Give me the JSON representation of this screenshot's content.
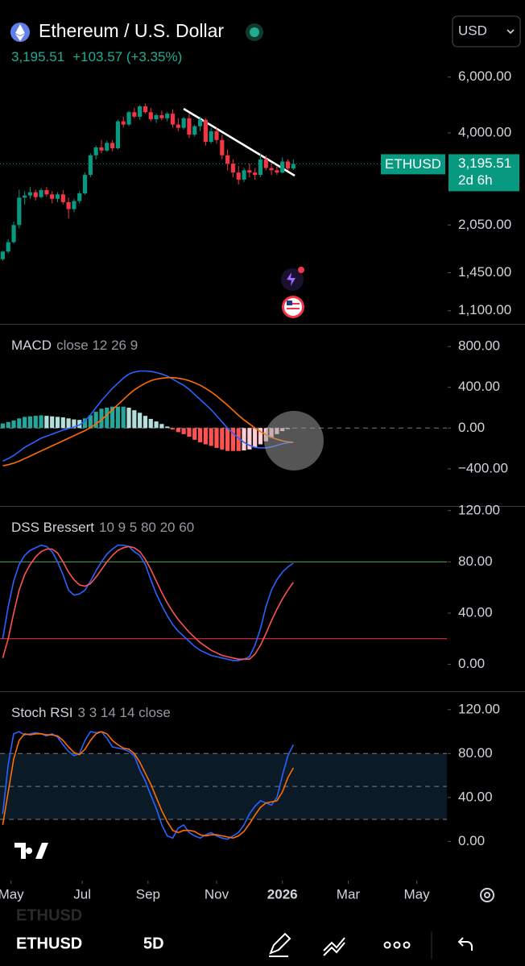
{
  "header": {
    "title": "Ethereum / U.S. Dollar",
    "price": "3,195.51",
    "change": "+103.57 (+3.35%)",
    "currency": "USD"
  },
  "footer": {
    "symbol": "ETHUSD",
    "interval": "5D"
  },
  "chart_data": [
    {
      "type": "candlestick",
      "log_scale": true,
      "up_color": "#089981",
      "down_color": "#f23645",
      "open": [
        1600,
        1690,
        1810,
        2050,
        2500,
        2540,
        2600,
        2510,
        2640,
        2560,
        2480,
        2560,
        2420,
        2300,
        2440,
        2580,
        2950,
        3400,
        3600,
        3520,
        3720,
        3580,
        4350,
        4250,
        4650,
        4500,
        4850,
        4650,
        4420,
        4550,
        4450,
        4600,
        4250,
        4150,
        4450,
        3950,
        4200,
        4400,
        3750,
        4050,
        3800,
        3400,
        3200,
        3000,
        2850,
        3050,
        3000,
        2950,
        3300,
        3100,
        3050,
        3000,
        3250,
        3090
      ],
      "high": [
        1700,
        1850,
        2100,
        2650,
        2620,
        2700,
        2650,
        2680,
        2700,
        2620,
        2600,
        2640,
        2500,
        2480,
        2620,
        3000,
        3450,
        3650,
        3800,
        3780,
        3800,
        4400,
        4500,
        4700,
        4800,
        4900,
        4950,
        4800,
        4600,
        4700,
        4650,
        4750,
        4450,
        4500,
        4600,
        4250,
        4500,
        4450,
        4150,
        4150,
        3950,
        3550,
        3300,
        3150,
        3100,
        3200,
        3100,
        3450,
        3400,
        3200,
        3150,
        3350,
        3300,
        3300
      ],
      "low": [
        1580,
        1670,
        1790,
        2000,
        2380,
        2480,
        2450,
        2490,
        2520,
        2400,
        2420,
        2380,
        2150,
        2250,
        2400,
        2550,
        2900,
        3300,
        3450,
        3480,
        3500,
        3550,
        4150,
        4200,
        4450,
        4400,
        4600,
        4350,
        4300,
        4380,
        4350,
        4150,
        4050,
        4100,
        3850,
        3900,
        4050,
        3650,
        3700,
        3700,
        3300,
        3050,
        2900,
        2750,
        2800,
        2900,
        2850,
        2900,
        3050,
        2950,
        2950,
        2980,
        3050,
        3060
      ],
      "close": [
        1690,
        1810,
        2050,
        2500,
        2540,
        2600,
        2510,
        2640,
        2560,
        2480,
        2560,
        2420,
        2300,
        2440,
        2580,
        2950,
        3400,
        3600,
        3520,
        3720,
        3580,
        4350,
        4250,
        4650,
        4500,
        4850,
        4650,
        4420,
        4550,
        4450,
        4600,
        4250,
        4150,
        4450,
        3950,
        4200,
        4400,
        3750,
        4050,
        3800,
        3400,
        3200,
        3000,
        2850,
        3050,
        3000,
        2950,
        3300,
        3100,
        3050,
        3000,
        3250,
        3090,
        3195.51
      ],
      "ylim": [
        1000,
        10500
      ],
      "yticks": [
        {
          "value": 6000,
          "label": "6,000.00"
        },
        {
          "value": 4000,
          "label": "4,000.00"
        },
        {
          "value": 2050,
          "label": "2,050.00"
        },
        {
          "value": 1450,
          "label": "1,450.00"
        },
        {
          "value": 1100,
          "label": "1,100.00"
        }
      ],
      "symbol": "ETHUSD",
      "last_price": {
        "value": 3195.51,
        "label": "3,195.51"
      },
      "countdown": "2d 6h"
    },
    {
      "type": "macd",
      "title": "MACD",
      "subtitle": "close 12 26 9",
      "histogram_colors": [
        "#26a69a",
        "#b2dfdb",
        "#ff5252",
        "#ffcdd2"
      ],
      "histogram": [
        45,
        60,
        75,
        95,
        110,
        115,
        120,
        125,
        120,
        115,
        110,
        105,
        95,
        85,
        80,
        95,
        125,
        160,
        190,
        200,
        210,
        210,
        210,
        200,
        175,
        150,
        120,
        90,
        65,
        40,
        15,
        -15,
        -40,
        -60,
        -85,
        -115,
        -140,
        -160,
        -175,
        -195,
        -210,
        -225,
        -225,
        -225,
        -220,
        -210,
        -190,
        -160,
        -130,
        -95,
        -60,
        -30,
        -10,
        0
      ],
      "series": [
        {
          "color": "#2962ff",
          "values": [
            -325,
            -300,
            -270,
            -230,
            -190,
            -160,
            -130,
            -100,
            -80,
            -60,
            -40,
            -20,
            -5,
            10,
            30,
            70,
            130,
            200,
            270,
            330,
            390,
            440,
            490,
            530,
            550,
            560,
            560,
            555,
            545,
            530,
            510,
            480,
            450,
            420,
            380,
            330,
            280,
            230,
            180,
            120,
            60,
            0,
            -50,
            -100,
            -140,
            -170,
            -190,
            -195,
            -195,
            -185,
            -170,
            -155,
            -145,
            -140
          ]
        },
        {
          "color": "#ff6d00",
          "values": [
            -370,
            -360,
            -345,
            -325,
            -300,
            -275,
            -250,
            -225,
            -200,
            -175,
            -150,
            -125,
            -100,
            -75,
            -50,
            -25,
            5,
            40,
            80,
            130,
            180,
            230,
            280,
            330,
            375,
            410,
            440,
            465,
            480,
            490,
            495,
            495,
            490,
            480,
            465,
            445,
            420,
            390,
            355,
            315,
            270,
            225,
            175,
            125,
            80,
            40,
            0,
            -35,
            -65,
            -90,
            -110,
            -125,
            -135,
            -140
          ]
        }
      ],
      "levels": [
        {
          "value": 0,
          "color": "#787b86",
          "dashed": true
        }
      ],
      "ylim": [
        -765,
        1015
      ],
      "yticks": [
        {
          "value": 800,
          "label": "800.00"
        },
        {
          "value": 400,
          "label": "400.00"
        },
        {
          "value": 0,
          "label": "0.00"
        },
        {
          "value": -400,
          "label": "−400.00"
        }
      ]
    },
    {
      "type": "line",
      "title": "DSS Bressert",
      "subtitle": "10 9 5 80 20 60",
      "series": [
        {
          "color": "#2962ff",
          "values": [
            20,
            45,
            65,
            78,
            85,
            89,
            91,
            93,
            92,
            88,
            80,
            70,
            58,
            54,
            55,
            58,
            65,
            73,
            80,
            86,
            90,
            93,
            93,
            92,
            88,
            85,
            78,
            66,
            55,
            46,
            38,
            31,
            26,
            22,
            18,
            14,
            11,
            9,
            7,
            6,
            5,
            4,
            3,
            3,
            4,
            6,
            15,
            28,
            45,
            58,
            66,
            72,
            76,
            79
          ]
        },
        {
          "color": "#ff5252",
          "values": [
            5,
            20,
            40,
            58,
            70,
            78,
            84,
            88,
            90,
            90,
            87,
            80,
            72,
            66,
            62,
            61,
            63,
            68,
            74,
            80,
            85,
            89,
            91,
            92,
            91,
            88,
            82,
            74,
            65,
            56,
            48,
            41,
            35,
            30,
            25,
            21,
            17,
            14,
            11,
            9,
            7,
            6,
            5,
            4,
            4,
            4,
            8,
            15,
            24,
            34,
            43,
            51,
            58,
            64
          ]
        }
      ],
      "levels": [
        {
          "value": 80,
          "color": "#4caf50",
          "dashed": false
        },
        {
          "value": 20,
          "color": "#f23645",
          "dashed": false
        }
      ],
      "ylim": [
        -21,
        123
      ],
      "yticks": [
        {
          "value": 120,
          "label": "120.00"
        },
        {
          "value": 80,
          "label": "80.00"
        },
        {
          "value": 40,
          "label": "40.00"
        },
        {
          "value": 0,
          "label": "0.00"
        }
      ]
    },
    {
      "type": "line",
      "title": "Stoch RSI",
      "subtitle": "3 3 14 14 close",
      "series": [
        {
          "color": "#2962ff",
          "values": [
            25,
            70,
            98,
            100,
            97,
            98,
            99,
            98,
            96,
            98,
            95,
            88,
            82,
            78,
            80,
            92,
            100,
            99,
            100,
            94,
            86,
            85,
            84,
            82,
            78,
            65,
            55,
            42,
            30,
            15,
            5,
            3,
            12,
            15,
            8,
            5,
            3,
            6,
            8,
            5,
            3,
            2,
            5,
            8,
            15,
            25,
            32,
            37,
            35,
            33,
            40,
            60,
            78,
            88
          ]
        },
        {
          "color": "#ff6d00",
          "values": [
            15,
            45,
            75,
            92,
            98,
            97,
            98,
            98,
            97,
            97,
            96,
            92,
            86,
            81,
            79,
            84,
            92,
            98,
            100,
            98,
            92,
            88,
            85,
            84,
            80,
            72,
            62,
            52,
            40,
            28,
            18,
            10,
            8,
            10,
            10,
            9,
            6,
            5,
            6,
            6,
            5,
            4,
            3,
            5,
            9,
            16,
            24,
            31,
            35,
            36,
            37,
            45,
            58,
            67
          ]
        }
      ],
      "band": {
        "from": 20,
        "to": 80,
        "color": "#0b1a27"
      },
      "levels": [
        {
          "value": 80,
          "color": "#787b86",
          "dashed": true
        },
        {
          "value": 50,
          "color": "#787b86",
          "dashed": true
        },
        {
          "value": 20,
          "color": "#787b86",
          "dashed": true
        }
      ],
      "ylim": [
        -35,
        136
      ],
      "yticks": [
        {
          "value": 120,
          "label": "120.00"
        },
        {
          "value": 80,
          "label": "80.00"
        },
        {
          "value": 40,
          "label": "40.00"
        },
        {
          "value": 0,
          "label": "0.00"
        }
      ],
      "xlim": [
        -0.5,
        81
      ],
      "xticks": [
        {
          "value": 1.5,
          "label": "May"
        },
        {
          "value": 14.5,
          "label": "Jul"
        },
        {
          "value": 26.5,
          "label": "Sep"
        },
        {
          "value": 39,
          "label": "Nov"
        },
        {
          "value": 51,
          "label": "2026"
        },
        {
          "value": 63,
          "label": "Mar"
        },
        {
          "value": 75.5,
          "label": "May"
        }
      ]
    }
  ]
}
